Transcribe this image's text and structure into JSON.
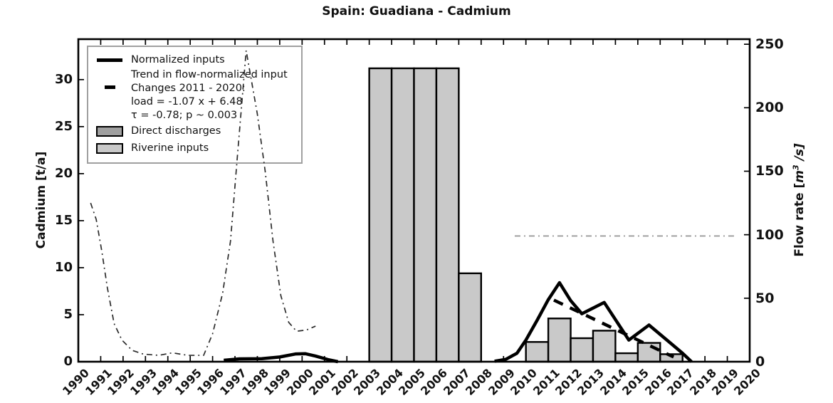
{
  "title": "Spain: Guadiana - Cadmium",
  "legend": {
    "items": [
      {
        "swatch": "line-solid",
        "label": "Normalized inputs"
      },
      {
        "swatch": "line-dashed",
        "label_lines": [
          "Trend in flow-normalized input",
          "Changes 2011 - 2020:",
          "load = -1.07 x +  6.48",
          "τ = -0.78; p ~ 0.003"
        ]
      },
      {
        "swatch": "bar-dark",
        "label": "Direct discharges",
        "color": "#a0a0a0"
      },
      {
        "swatch": "bar-light",
        "label": "Riverine inputs",
        "color": "#c9c9c9"
      }
    ]
  },
  "chart_data": {
    "type": "combo-bar-line",
    "title": "Spain: Guadiana - Cadmium",
    "grid": false,
    "legend_position": "upper-left",
    "x_axis": {
      "range": [
        1990,
        2020
      ],
      "tick_labels": [
        "1990",
        "1991",
        "1992",
        "1993",
        "1994",
        "1995",
        "1996",
        "1997",
        "1998",
        "1999",
        "2000",
        "2001",
        "2002",
        "2003",
        "2004",
        "2005",
        "2006",
        "2007",
        "2008",
        "2009",
        "2010",
        "2011",
        "2012",
        "2013",
        "2014",
        "2015",
        "2016",
        "2017",
        "2018",
        "2019",
        "2020"
      ]
    },
    "left_axis": {
      "label": "Cadmium [t/a]",
      "range": [
        0,
        34.3
      ],
      "ticks": [
        0,
        5,
        10,
        15,
        20,
        25,
        30
      ]
    },
    "right_axis": {
      "label_parts": {
        "prefix": "Flow rate [",
        "base": "m",
        "sup": "3",
        "suffix": " /s]"
      },
      "range": [
        0,
        254
      ],
      "ticks": [
        0,
        50,
        100,
        150,
        200,
        250
      ]
    },
    "bars_riverine": {
      "name": "Riverine inputs",
      "axis": "left",
      "fill": "#c9c9c9",
      "edge": "#000000",
      "bar_span_years": 1,
      "data": [
        {
          "year": 2003,
          "value": 31.2
        },
        {
          "year": 2004,
          "value": 31.2
        },
        {
          "year": 2005,
          "value": 31.2
        },
        {
          "year": 2006,
          "value": 31.2
        },
        {
          "year": 2007,
          "value": 9.4
        },
        {
          "year": 2010,
          "value": 2.1
        },
        {
          "year": 2011,
          "value": 4.6
        },
        {
          "year": 2012,
          "value": 2.5
        },
        {
          "year": 2013,
          "value": 3.3
        },
        {
          "year": 2014,
          "value": 0.9
        },
        {
          "year": 2015,
          "value": 2.0
        },
        {
          "year": 2016,
          "value": 0.8
        }
      ]
    },
    "bars_direct": {
      "name": "Direct discharges",
      "axis": "left",
      "fill": "#a0a0a0",
      "edge": "#000000",
      "data": []
    },
    "normalized_inputs": {
      "name": "Normalized inputs",
      "axis": "left",
      "style": "solid",
      "color": "#000000",
      "segments": [
        [
          [
            1996.5,
            0.15
          ],
          [
            1997.2,
            0.3
          ],
          [
            1998.2,
            0.32
          ],
          [
            1999.0,
            0.5
          ],
          [
            1999.7,
            0.82
          ],
          [
            2000.15,
            0.85
          ],
          [
            2000.6,
            0.6
          ],
          [
            2001.2,
            0.2
          ],
          [
            2001.6,
            0.0
          ]
        ],
        [
          [
            2008.6,
            0.05
          ],
          [
            2009.1,
            0.25
          ],
          [
            2009.6,
            0.9
          ],
          [
            2010.0,
            2.3
          ],
          [
            2010.5,
            4.4
          ],
          [
            2011.0,
            6.6
          ],
          [
            2011.5,
            8.4
          ],
          [
            2012.0,
            6.5
          ],
          [
            2012.5,
            5.1
          ],
          [
            2013.5,
            6.3
          ],
          [
            2014.6,
            2.3
          ],
          [
            2015.5,
            3.9
          ],
          [
            2016.5,
            1.9
          ],
          [
            2017.0,
            0.9
          ],
          [
            2017.4,
            0.0
          ]
        ]
      ]
    },
    "trend": {
      "name": "Trend in flow-normalized input",
      "axis": "left",
      "style": "dashed",
      "color": "#000000",
      "period": "2011 - 2020",
      "equation": "load = -1.07 x +  6.48",
      "tau": "-0.78",
      "p": "~ 0.003",
      "points": [
        [
          2011.25,
          6.55
        ],
        [
          2016.6,
          0.5
        ]
      ]
    },
    "flow_rate": {
      "name": "Flow rate",
      "axis": "right",
      "style": "dash-dot",
      "segments": [
        {
          "color": "#2b2b2b",
          "points": [
            [
              1990.55,
              125
            ],
            [
              1990.8,
              112
            ],
            [
              1991.05,
              87
            ],
            [
              1991.3,
              58
            ],
            [
              1991.6,
              30
            ],
            [
              1991.95,
              17
            ],
            [
              1992.4,
              9
            ],
            [
              1992.9,
              6
            ],
            [
              1993.6,
              5
            ],
            [
              1994.2,
              7
            ],
            [
              1994.9,
              5
            ],
            [
              1995.6,
              5
            ],
            [
              1996.0,
              22
            ],
            [
              1996.45,
              54
            ],
            [
              1996.8,
              95
            ],
            [
              1997.1,
              160
            ],
            [
              1997.5,
              245
            ],
            [
              1998.0,
              195
            ],
            [
              1998.35,
              150
            ],
            [
              1998.7,
              95
            ],
            [
              1999.05,
              52
            ],
            [
              1999.4,
              31
            ],
            [
              1999.75,
              24
            ],
            [
              2000.2,
              25
            ],
            [
              2000.6,
              28
            ]
          ]
        },
        {
          "color": "#8c8c8c",
          "points": [
            [
              2009.5,
              99
            ],
            [
              2019.4,
              99
            ]
          ]
        }
      ]
    }
  }
}
